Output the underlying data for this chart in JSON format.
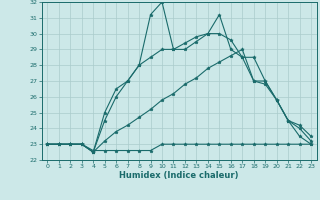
{
  "xlabel": "Humidex (Indice chaleur)",
  "bg_color": "#cce8e8",
  "grid_color": "#aacccc",
  "line_color": "#1a6b6b",
  "xlim": [
    -0.5,
    23.5
  ],
  "ylim": [
    22,
    32
  ],
  "xticks": [
    0,
    1,
    2,
    3,
    4,
    5,
    6,
    7,
    8,
    9,
    10,
    11,
    12,
    13,
    14,
    15,
    16,
    17,
    18,
    19,
    20,
    21,
    22,
    23
  ],
  "yticks": [
    22,
    23,
    24,
    25,
    26,
    27,
    28,
    29,
    30,
    31,
    32
  ],
  "line1_x": [
    0,
    1,
    2,
    3,
    4,
    5,
    6,
    7,
    8,
    9,
    10,
    11,
    12,
    13,
    14,
    15,
    16,
    17,
    18,
    19,
    20,
    21,
    22,
    23
  ],
  "line1_y": [
    23.0,
    23.0,
    23.0,
    23.0,
    22.6,
    22.6,
    22.6,
    22.6,
    22.6,
    22.6,
    23.0,
    23.0,
    23.0,
    23.0,
    23.0,
    23.0,
    23.0,
    23.0,
    23.0,
    23.0,
    23.0,
    23.0,
    23.0,
    23.0
  ],
  "line2_x": [
    0,
    1,
    2,
    3,
    4,
    5,
    6,
    7,
    8,
    9,
    10,
    11,
    12,
    13,
    14,
    15,
    16,
    17,
    18,
    19,
    20,
    21,
    22,
    23
  ],
  "line2_y": [
    23.0,
    23.0,
    23.0,
    23.0,
    22.5,
    23.2,
    23.8,
    24.2,
    24.7,
    25.2,
    25.8,
    26.2,
    26.8,
    27.2,
    27.8,
    28.2,
    28.6,
    29.0,
    27.0,
    26.8,
    25.8,
    24.5,
    24.0,
    23.2
  ],
  "line3_x": [
    0,
    1,
    2,
    3,
    4,
    5,
    6,
    7,
    8,
    9,
    10,
    11,
    12,
    13,
    14,
    15,
    16,
    17,
    18,
    19,
    20,
    21,
    22,
    23
  ],
  "line3_y": [
    23.0,
    23.0,
    23.0,
    23.0,
    22.5,
    24.5,
    26.0,
    27.0,
    28.0,
    28.5,
    29.0,
    29.0,
    29.4,
    29.8,
    30.0,
    30.0,
    29.6,
    28.5,
    28.5,
    27.0,
    25.8,
    24.5,
    24.2,
    23.5
  ],
  "line4_x": [
    0,
    1,
    2,
    3,
    4,
    5,
    6,
    7,
    8,
    9,
    10,
    11,
    12,
    13,
    14,
    15,
    16,
    17,
    18,
    19,
    20,
    21,
    22,
    23
  ],
  "line4_y": [
    23.0,
    23.0,
    23.0,
    23.0,
    22.5,
    25.0,
    26.5,
    27.0,
    28.0,
    31.2,
    32.0,
    29.0,
    29.0,
    29.5,
    30.0,
    31.2,
    29.0,
    28.5,
    27.0,
    27.0,
    25.8,
    24.5,
    23.5,
    23.0
  ]
}
